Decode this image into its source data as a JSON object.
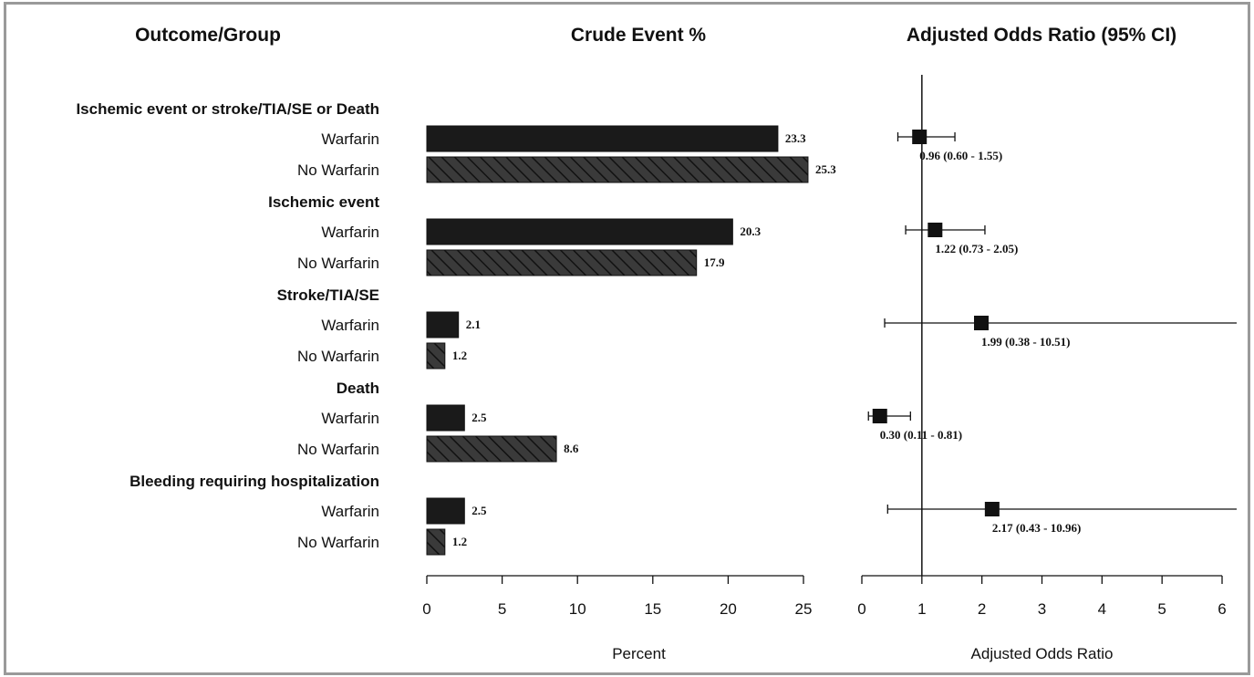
{
  "headers": {
    "outcome": "Outcome/Group",
    "crude": "Crude Event %",
    "adjusted": "Adjusted Odds Ratio (95% CI)"
  },
  "chart_data": [
    {
      "type": "bar",
      "orientation": "horizontal",
      "title": "Crude Event %",
      "xlabel": "Percent",
      "xlim": [
        0,
        25
      ],
      "xticks": [
        0,
        5,
        10,
        15,
        20,
        25
      ],
      "groups": [
        {
          "name": "Ischemic event or stroke/TIA/SE or Death",
          "rows": [
            {
              "label": "Warfarin",
              "value": 23.3,
              "value_label": "23.3"
            },
            {
              "label": "No Warfarin",
              "value": 25.3,
              "value_label": "25.3"
            }
          ]
        },
        {
          "name": "Ischemic event",
          "rows": [
            {
              "label": "Warfarin",
              "value": 20.3,
              "value_label": "20.3"
            },
            {
              "label": "No Warfarin",
              "value": 17.9,
              "value_label": "17.9"
            }
          ]
        },
        {
          "name": "Stroke/TIA/SE",
          "rows": [
            {
              "label": "Warfarin",
              "value": 2.1,
              "value_label": "2.1"
            },
            {
              "label": "No Warfarin",
              "value": 1.2,
              "value_label": "1.2"
            }
          ]
        },
        {
          "name": "Death",
          "rows": [
            {
              "label": "Warfarin",
              "value": 2.5,
              "value_label": "2.5"
            },
            {
              "label": "No Warfarin",
              "value": 8.6,
              "value_label": "8.6"
            }
          ]
        },
        {
          "name": "Bleeding requiring hospitalization",
          "rows": [
            {
              "label": "Warfarin",
              "value": 2.5,
              "value_label": "2.5"
            },
            {
              "label": "No Warfarin",
              "value": 1.2,
              "value_label": "1.2"
            }
          ]
        }
      ],
      "fill": {
        "Warfarin": "solid",
        "No Warfarin": "hatched"
      },
      "colors": {
        "Warfarin": "#1a1a1a",
        "No Warfarin": "#3a3a3a"
      }
    },
    {
      "type": "scatter",
      "subtype": "forest",
      "title": "Adjusted Odds Ratio (95% CI)",
      "xlabel": "Adjusted Odds Ratio",
      "xlim": [
        0,
        6
      ],
      "xticks": [
        0,
        1,
        2,
        3,
        4,
        5,
        6
      ],
      "reference_line": 1,
      "estimates": [
        {
          "group": "Ischemic event or stroke/TIA/SE or Death",
          "or": 0.96,
          "lower": 0.6,
          "upper": 1.55,
          "label": "0.96 (0.60 -  1.55)"
        },
        {
          "group": "Ischemic event",
          "or": 1.22,
          "lower": 0.73,
          "upper": 2.05,
          "label": "1.22 (0.73 -  2.05)"
        },
        {
          "group": "Stroke/TIA/SE",
          "or": 1.99,
          "lower": 0.38,
          "upper": 10.51,
          "label": "1.99 (0.38 - 10.51)"
        },
        {
          "group": "Death",
          "or": 0.3,
          "lower": 0.11,
          "upper": 0.81,
          "label": "0.30 (0.11 -  0.81)"
        },
        {
          "group": "Bleeding requiring hospitalization",
          "or": 2.17,
          "lower": 0.43,
          "upper": 10.96,
          "label": "2.17 (0.43 - 10.96)"
        }
      ]
    }
  ]
}
